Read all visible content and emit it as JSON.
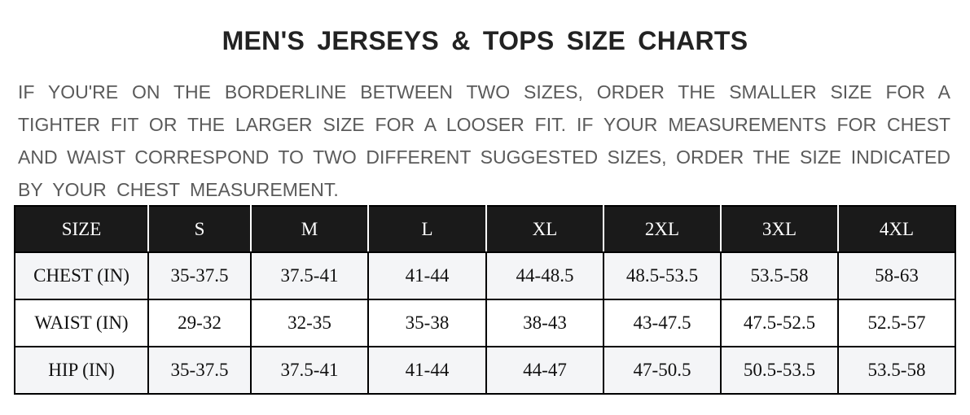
{
  "title": "MEN'S JERSEYS & TOPS SIZE CHARTS",
  "intro_lines": [
    "IF YOU'RE ON THE BORDERLINE BETWEEN TWO SIZES, ORDER THE SMALLER SIZE FOR A",
    "TIGHTER FIT OR THE LARGER SIZE FOR A LOOSER FIT. IF YOUR MEASUREMENTS FOR CHEST",
    "AND WAIST CORRESPOND TO TWO DIFFERENT SUGGESTED SIZES, ORDER THE SIZE INDICATED",
    "BY YOUR CHEST MEASUREMENT."
  ],
  "table": {
    "header": [
      "SIZE",
      "S",
      "M",
      "L",
      "XL",
      "2XL",
      "3XL",
      "4XL"
    ],
    "rows": [
      [
        "CHEST (IN)",
        "35-37.5",
        "37.5-41",
        "41-44",
        "44-48.5",
        "48.5-53.5",
        "53.5-58",
        "58-63"
      ],
      [
        "WAIST (IN)",
        "29-32",
        "32-35",
        "35-38",
        "38-43",
        "43-47.5",
        "47.5-52.5",
        "52.5-57"
      ],
      [
        "HIP (IN)",
        "35-37.5",
        "37.5-41",
        "41-44",
        "44-47",
        "47-50.5",
        "50.5-53.5",
        "53.5-58"
      ]
    ]
  },
  "colors": {
    "header_bg": "#1a1a1a",
    "alt_row_bg": "#f4f5f7",
    "intro_text": "#5a5a5a"
  }
}
